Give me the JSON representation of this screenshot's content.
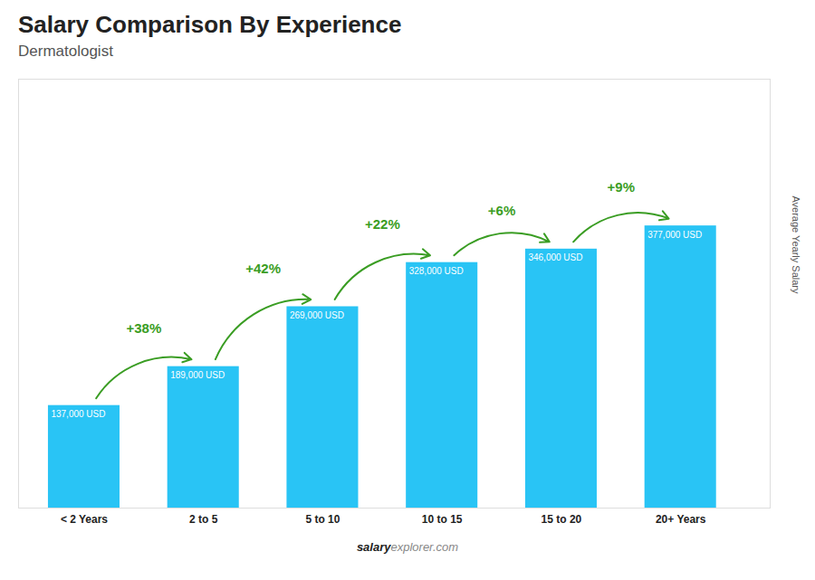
{
  "chart_data": {
    "type": "bar",
    "title": "Salary Comparison By Experience",
    "subtitle": "Dermatologist",
    "y_label": "Average Yearly Salary",
    "categories": [
      "< 2 Years",
      "2 to 5",
      "5 to 10",
      "10 to 15",
      "15 to 20",
      "20+ Years"
    ],
    "values": [
      137000,
      189000,
      269000,
      328000,
      346000,
      377000
    ],
    "value_labels": [
      "137,000 USD",
      "189,000 USD",
      "269,000 USD",
      "328,000 USD",
      "346,000 USD",
      "377,000 USD"
    ],
    "data_labels": true,
    "annotations": [
      "+38%",
      "+42%",
      "+22%",
      "+6%",
      "+9%"
    ],
    "watermark": [
      "salary",
      "explorer.com"
    ],
    "color": "#29C4F5",
    "ylim": [
      0,
      573040
    ],
    "grid": false,
    "tick_labels": "x"
  }
}
